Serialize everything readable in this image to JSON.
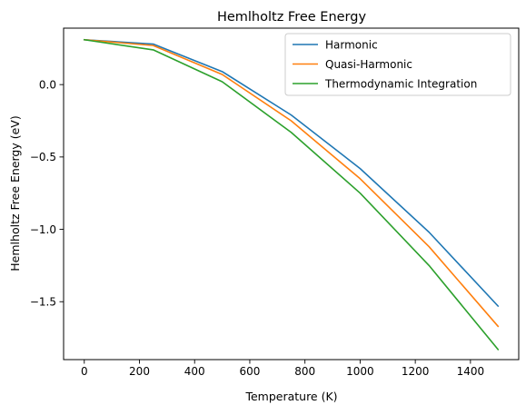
{
  "chart_data": {
    "type": "line",
    "title": "Hemlholtz Free Energy",
    "xlabel": "Temperature (K)",
    "ylabel": "Hemlholtz Free Energy (eV)",
    "xlim": [
      -75,
      1575
    ],
    "ylim": [
      -1.9,
      0.39
    ],
    "xticks": [
      0,
      200,
      400,
      600,
      800,
      1000,
      1200,
      1400
    ],
    "xtick_labels": [
      "0",
      "200",
      "400",
      "600",
      "800",
      "1000",
      "1200",
      "1400"
    ],
    "yticks": [
      0.0,
      -0.5,
      -1.0,
      -1.5
    ],
    "ytick_labels": [
      "0.0",
      "−0.5",
      "−1.0",
      "−1.5"
    ],
    "grid": false,
    "legend_position": "top-right",
    "x": [
      0,
      250,
      500,
      750,
      1000,
      1250,
      1500
    ],
    "series": [
      {
        "name": "Harmonic",
        "color": "#1f77b4",
        "values": [
          0.31,
          0.28,
          0.09,
          -0.21,
          -0.58,
          -1.02,
          -1.53
        ]
      },
      {
        "name": "Quasi-Harmonic",
        "color": "#ff7f0e",
        "values": [
          0.31,
          0.27,
          0.07,
          -0.25,
          -0.65,
          -1.12,
          -1.67
        ]
      },
      {
        "name": "Thermodynamic Integration",
        "color": "#2ca02c",
        "values": [
          0.31,
          0.24,
          0.02,
          -0.33,
          -0.75,
          -1.25,
          -1.83
        ]
      }
    ]
  }
}
